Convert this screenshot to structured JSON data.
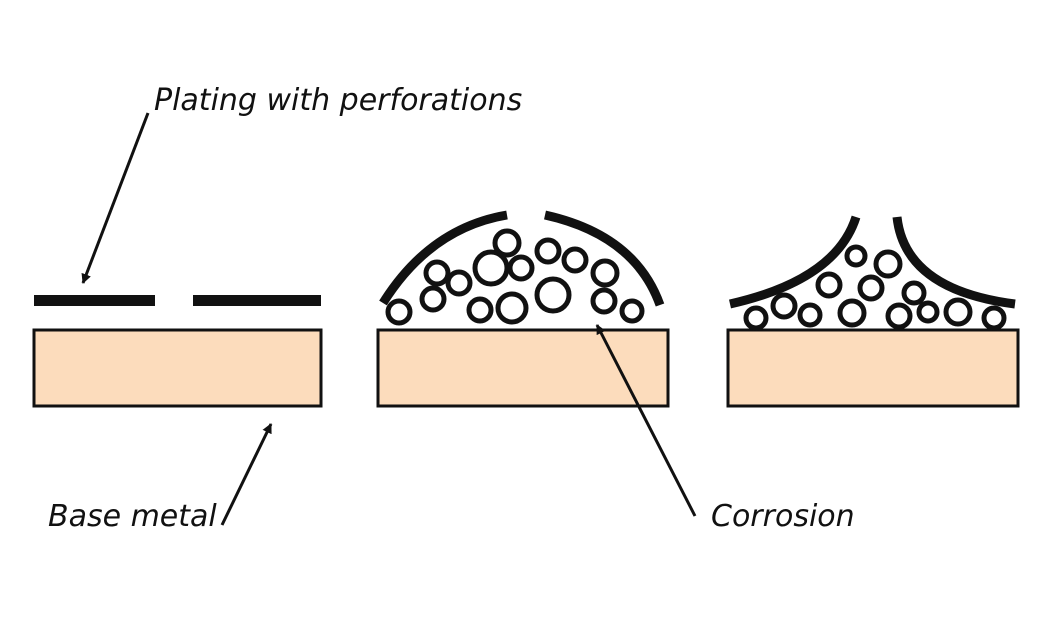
{
  "labels": {
    "plating": "Plating with perforations",
    "base_metal": "Base metal",
    "corrosion": "Corrosion"
  },
  "colors": {
    "base_metal_fill": "#fcdcbc",
    "ink": "#111111",
    "background": "#ffffff"
  }
}
